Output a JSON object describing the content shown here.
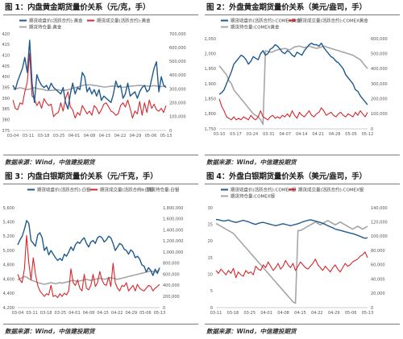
{
  "charts": [
    {
      "title": "图 1：内盘黄金期货量价关系（元/克，手）",
      "source": "数据来源：Wind，中信建投期货",
      "legend": [
        "期货收盘价(活跃合约):黄金",
        "期货成交量(活跃合约):黄金",
        "期货持仓量:黄金"
      ],
      "left_ticks": [
        "420",
        "415",
        "410",
        "405",
        "400",
        "395",
        "390",
        "385",
        "380",
        "375"
      ],
      "right_ticks": [
        "700,000",
        "600,000",
        "500,000",
        "400,000",
        "300,000",
        "200,000",
        "100,000",
        "0"
      ],
      "x_ticks": [
        "03-04",
        "03-11",
        "03-18",
        "03-25",
        "04-01",
        "04-08",
        "04-15",
        "04-22",
        "04-29",
        "05-06",
        "05-13"
      ]
    },
    {
      "title": "图 2：外盘黄金期货量价关系（美元/盎司，手）",
      "source": "数据来源：Wind，中信建投期货",
      "legend": [
        "期货收盘价(活跃合约):COMEX黄金",
        "期货成交量(活跃合约):COMEX黄金",
        "期货持仓量:COMEX黄金"
      ],
      "left_ticks": [
        "2,050",
        "2,000",
        "1,950",
        "1,900",
        "1,850",
        "1,800",
        "1,750"
      ],
      "right_ticks": [
        "600,000",
        "500,000",
        "400,000",
        "300,000",
        "200,000",
        "100,000",
        "0"
      ],
      "x_ticks": [
        "03-10",
        "03-17",
        "03-24",
        "03-31",
        "04-07",
        "04-14",
        "04-21",
        "04-28",
        "05-05",
        "05-12"
      ]
    },
    {
      "title": "图 3：内盘白银期货量价关系（元/千克，手）",
      "source": "数据来源：Wind，中信建投期货",
      "legend": [
        "期货收盘价(活跃合约):白银",
        "期货成交量(活跃合约):白银",
        "期货持仓量:白银"
      ],
      "left_ticks": [
        "5,600",
        "5,400",
        "5,200",
        "5,000",
        "4,800",
        "4,600",
        "4,400",
        "4,200"
      ],
      "right_ticks": [
        "1,800,000",
        "1,600,000",
        "1,400,000",
        "1,200,000",
        "1,000,000",
        "800,000",
        "600,000",
        "400,000",
        "200,000",
        "0"
      ],
      "x_ticks": [
        "03-04",
        "03-11",
        "03-18",
        "03-25",
        "04-01",
        "04-08",
        "04-15",
        "04-22",
        "04-29",
        "05-06",
        "05-13"
      ]
    },
    {
      "title": "图 4：外盘白银期货量价关系（美元/盎司，手）",
      "source": "数据来源：Wind，中信建投期货",
      "legend": [
        "期货收盘价(活跃合约):COMEX银",
        "期货成交量(活跃合约):COMEX银",
        "期货持仓量:COMEX银"
      ],
      "left_ticks": [
        "30",
        "25",
        "20",
        "15",
        "10",
        "5",
        "0"
      ],
      "right_ticks": [
        "140,000",
        "120,000",
        "100,000",
        "80,000",
        "60,000",
        "40,000",
        "20,000",
        "0"
      ],
      "x_ticks": [
        "03-11",
        "03-18",
        "03-25",
        "04-01",
        "04-08",
        "04-15",
        "04-22",
        "04-29",
        "05-06",
        "05-13"
      ]
    }
  ],
  "colors": {
    "price": "#1f5a8f",
    "volume": "#d6262b",
    "oi": "#a6a6a6"
  },
  "chart_data": [
    {
      "type": "line",
      "left_axis": {
        "range": [
          375,
          420
        ]
      },
      "right_axis": {
        "range": [
          0,
          700000
        ]
      },
      "series": [
        {
          "name": "期货收盘价(活跃合约):黄金",
          "axis": "left",
          "values": [
            396,
            394,
            398,
            401,
            404,
            409,
            402,
            417,
            397,
            388,
            401,
            398,
            396,
            395,
            396,
            394,
            397,
            395,
            394,
            393,
            392,
            395,
            388,
            385,
            392,
            397,
            392,
            395,
            394,
            402,
            400,
            393,
            395,
            392,
            394,
            391,
            394,
            389,
            391,
            390,
            389,
            388,
            392,
            398,
            395,
            396,
            390,
            392,
            397,
            391,
            392,
            393,
            390,
            393,
            395,
            396,
            393,
            394,
            399,
            404,
            407,
            393,
            400,
            396,
            395
          ]
        },
        {
          "name": "期货成交量(活跃合约):黄金",
          "axis": "right",
          "values": [
            220000,
            160000,
            150000,
            200000,
            190000,
            280000,
            350000,
            560000,
            250000,
            230000,
            180000,
            210000,
            160000,
            230000,
            200000,
            180000,
            190000,
            100000,
            120000,
            130000,
            200000,
            140000,
            230000,
            280000,
            170000,
            150000,
            90000,
            130000,
            110000,
            180000,
            150000,
            120000,
            140000,
            110000,
            180000,
            160000,
            120000,
            150000,
            190000,
            200000,
            170000,
            140000,
            130000,
            110000,
            120000,
            180000,
            200000,
            170000,
            220000,
            160000,
            90000,
            140000,
            120000,
            210000,
            110000,
            200000,
            130000,
            220000,
            160000,
            190000,
            150000,
            140000,
            160000,
            130000,
            180000
          ]
        },
        {
          "name": "期货持仓量:黄金",
          "axis": "right",
          "values": [
            300000,
            300000,
            305000,
            310000,
            305000,
            300000,
            295000,
            300000,
            305000,
            310000,
            305000,
            300000,
            300000,
            295000,
            290000,
            290000,
            290000,
            292000,
            295000,
            295000,
            290000,
            290000,
            292000,
            295000,
            300000,
            305000,
            310000,
            315000,
            320000,
            325000,
            330000,
            330000,
            330000,
            330000,
            325000,
            325000,
            320000,
            318000,
            315000,
            315000,
            318000,
            320000,
            322000,
            320000,
            318000,
            315000,
            312000,
            315000,
            318000,
            320000,
            322000,
            324000,
            325000,
            326000,
            325000,
            324000,
            322000,
            320000,
            322000,
            325000,
            322000,
            320000,
            318000,
            320000,
            322000
          ]
        }
      ]
    },
    {
      "type": "line",
      "left_axis": {
        "range": [
          1750,
          2050
        ]
      },
      "right_axis": {
        "range": [
          0,
          600000
        ]
      },
      "series": [
        {
          "name": "期货收盘价(活跃合约):COMEX黄金",
          "axis": "left",
          "values": [
            1865,
            1870,
            1880,
            1900,
            1920,
            1940,
            1965,
            1975,
            1985,
            1995,
            1990,
            1980,
            1965,
            1975,
            1990,
            1985,
            1980,
            2000,
            2010,
            1995,
            2000,
            2015,
            2020,
            2030,
            2025,
            2015,
            2005,
            2000,
            2010,
            2005,
            1995,
            1990,
            2005,
            2000,
            1995,
            2010,
            2020,
            2030,
            2035,
            2030,
            2030,
            2025,
            2035,
            2020,
            2010,
            2000,
            1990,
            1985,
            1975,
            1970,
            1960,
            1950,
            1930,
            1920,
            1910,
            1900,
            1880,
            1875,
            1860,
            1850,
            1840,
            1830
          ]
        },
        {
          "name": "期货成交量(活跃合约):COMEX黄金",
          "axis": "right",
          "values": [
            200000,
            150000,
            120000,
            80000,
            70000,
            60000,
            80000,
            60000,
            70000,
            60000,
            80000,
            70000,
            60000,
            90000,
            70000,
            60000,
            80000,
            120000,
            80000,
            70000,
            60000,
            80000,
            90000,
            70000,
            80000,
            70000,
            90000,
            80000,
            100000,
            80000,
            120000,
            90000,
            70000,
            110000,
            90000,
            80000,
            100000,
            120000,
            90000,
            80000,
            100000,
            110000,
            140000,
            120000,
            90000,
            100000,
            110000,
            90000,
            80000,
            100000,
            110000,
            90000,
            80000,
            100000,
            90000,
            80000,
            110000,
            90000,
            120000,
            100000,
            80000,
            110000
          ]
        },
        {
          "name": "期货持仓量:COMEX黄金",
          "axis": "right",
          "values": [
            420000,
            400000,
            380000,
            360000,
            320000,
            300000,
            260000,
            240000,
            220000,
            200000,
            180000,
            160000,
            140000,
            120000,
            100000,
            90000,
            80000,
            60000,
            30000,
            520000,
            515000,
            510000,
            512000,
            520000,
            525000,
            530000,
            532000,
            535000,
            530000,
            525000,
            535000,
            545000,
            548000,
            550000,
            545000,
            540000,
            545000,
            550000,
            545000,
            540000,
            535000,
            540000,
            545000,
            550000,
            545000,
            540000,
            535000,
            530000,
            525000,
            520000,
            515000,
            510000,
            505000,
            500000,
            495000,
            490000,
            480000,
            470000,
            460000,
            440000,
            420000,
            400000
          ]
        }
      ]
    },
    {
      "type": "line",
      "left_axis": {
        "range": [
          4200,
          5600
        ]
      },
      "right_axis": {
        "range": [
          0,
          1800000
        ]
      },
      "series": [
        {
          "name": "期货收盘价(活跃合约):白银",
          "axis": "left",
          "values": [
            5080,
            5150,
            5200,
            5300,
            5420,
            5380,
            5140,
            5100,
            5060,
            5220,
            5250,
            5180,
            5000,
            5050,
            4940,
            5000,
            4950,
            4900,
            4860,
            4890,
            4860,
            4950,
            4920,
            4980,
            5050,
            5000,
            5080,
            5120,
            5100,
            5150,
            5180,
            5100,
            5050,
            5120,
            5140,
            5100,
            5180,
            5200,
            5180,
            5120,
            5150,
            5200,
            5180,
            5100,
            5000,
            5050,
            5100,
            5080,
            5020,
            5000,
            4950,
            5010,
            4980,
            4900,
            4920,
            4880,
            4800,
            4780,
            4700,
            4760,
            4720,
            4650,
            4740,
            4680,
            4760
          ]
        },
        {
          "name": "期货成交量(活跃合约):白银",
          "axis": "right",
          "values": [
            600000,
            500000,
            450000,
            700000,
            1300000,
            800000,
            500000,
            900000,
            600000,
            400000,
            300000,
            250000,
            200000,
            250000,
            230000,
            400000,
            200000,
            220000,
            180000,
            250000,
            200000,
            260000,
            230000,
            300000,
            700000,
            450000,
            400000,
            500000,
            350000,
            300000,
            600000,
            350000,
            320000,
            400000,
            600000,
            380000,
            450000,
            650000,
            500000,
            420000,
            400000,
            550000,
            380000,
            800000,
            450000,
            350000,
            300000,
            400000,
            380000,
            450000,
            300000,
            350000,
            400000,
            300000,
            420000,
            350000,
            320000,
            300000,
            350000,
            400000,
            380000,
            300000,
            350000,
            380000,
            420000
          ]
        },
        {
          "name": "期货持仓量:白银",
          "axis": "right",
          "values": [
            500000,
            520000,
            540000,
            560000,
            550000,
            520000,
            500000,
            480000,
            470000,
            450000,
            440000,
            430000,
            420000,
            430000,
            440000,
            450000,
            440000,
            430000,
            440000,
            450000,
            440000,
            450000,
            460000,
            470000,
            480000,
            490000,
            480000,
            470000,
            480000,
            490000,
            500000,
            510000,
            500000,
            490000,
            500000,
            510000,
            520000,
            530000,
            520000,
            510000,
            520000,
            530000,
            540000,
            530000,
            520000,
            510000,
            520000,
            530000,
            540000,
            550000,
            560000,
            570000,
            580000,
            590000,
            600000,
            610000,
            620000,
            630000,
            640000,
            650000,
            660000,
            650000,
            640000,
            660000,
            680000
          ]
        }
      ]
    },
    {
      "type": "line",
      "left_axis": {
        "range": [
          0,
          30
        ]
      },
      "right_axis": {
        "range": [
          0,
          140000
        ]
      },
      "series": [
        {
          "name": "期货收盘价(活跃合约):COMEX银",
          "axis": "left",
          "values": [
            26.5,
            26.4,
            26.2,
            26.0,
            26.1,
            26.3,
            26.0,
            25.8,
            25.6,
            25.8,
            26.0,
            26.2,
            26.0,
            25.8,
            25.5,
            25.2,
            25.0,
            25.3,
            25.5,
            25.6,
            25.4,
            25.2,
            25.0,
            24.8,
            24.6,
            24.8,
            25.0,
            25.2,
            25.0,
            24.8,
            24.6,
            24.8,
            25.0,
            25.2,
            25.5,
            25.8,
            26.0,
            26.2,
            26.4,
            26.2,
            26.0,
            25.8,
            25.6,
            25.3,
            25.0,
            24.6,
            24.3,
            24.0,
            23.6,
            23.4,
            23.2,
            23.0,
            22.8,
            22.6,
            22.4,
            22.2,
            22.0,
            21.7,
            21.4,
            21.1,
            20.8,
            21.0
          ]
        },
        {
          "name": "期货成交量(活跃合约):COMEX银",
          "axis": "right",
          "values": [
            52000,
            48000,
            54000,
            50000,
            46000,
            52000,
            48000,
            55000,
            42000,
            50000,
            46000,
            44000,
            52000,
            48000,
            50000,
            46000,
            58000,
            54000,
            52000,
            60000,
            56000,
            64000,
            58000,
            52000,
            56000,
            62000,
            54000,
            58000,
            66000,
            60000,
            56000,
            62000,
            52000,
            58000,
            64000,
            60000,
            56000,
            54000,
            58000,
            62000,
            68000,
            60000,
            56000,
            52000,
            58000,
            54000,
            50000,
            56000,
            60000,
            54000,
            50000,
            56000,
            62000,
            58000,
            60000,
            64000,
            66000,
            68000,
            72000,
            74000,
            78000,
            70000
          ]
        },
        {
          "name": "期货持仓量:COMEX银",
          "axis": "right",
          "values": [
            118000,
            116000,
            114000,
            112000,
            110000,
            108000,
            106000,
            104000,
            100000,
            96000,
            92000,
            88000,
            84000,
            80000,
            76000,
            72000,
            68000,
            64000,
            60000,
            56000,
            52000,
            48000,
            44000,
            40000,
            36000,
            32000,
            28000,
            24000,
            20000,
            16000,
            12000,
            8000,
            6000,
            108000,
            108000,
            110000,
            112000,
            114000,
            116000,
            118000,
            120000,
            118000,
            116000,
            118000,
            120000,
            122000,
            120000,
            118000,
            116000,
            118000,
            120000,
            118000,
            116000,
            114000,
            112000,
            110000,
            112000,
            114000,
            112000,
            110000,
            112000,
            114000
          ]
        }
      ]
    }
  ]
}
